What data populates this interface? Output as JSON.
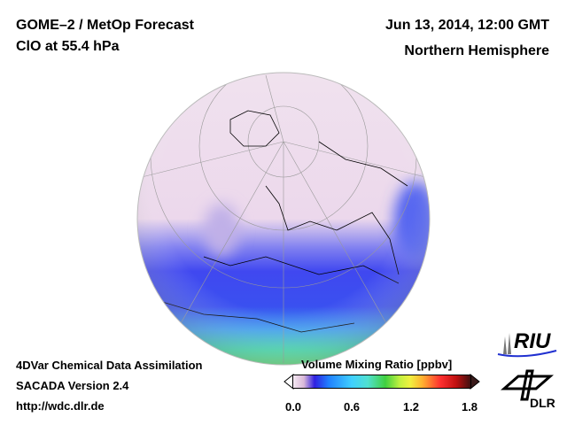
{
  "header": {
    "title": "GOME–2 / MetOp Forecast",
    "subtitle": "ClO at 55.4 hPa",
    "date": "Jun 13, 2014, 12:00 GMT",
    "region": "Northern Hemisphere"
  },
  "footer": {
    "line1": "4DVar Chemical Data Assimilation",
    "line2": "SACADA Version 2.4",
    "line3": "http://wdc.dlr.de"
  },
  "colorbar": {
    "title": "Volume Mixing Ratio [ppbv]",
    "ticks": [
      "0.0",
      "0.6",
      "1.2",
      "1.8"
    ],
    "min": 0.0,
    "max": 1.8
  },
  "logos": {
    "riu": "RIU",
    "dlr": "DLR"
  },
  "colors": {
    "low": "#f0e2ee",
    "mid": "#3a40f0",
    "high": "#40e0a0"
  }
}
